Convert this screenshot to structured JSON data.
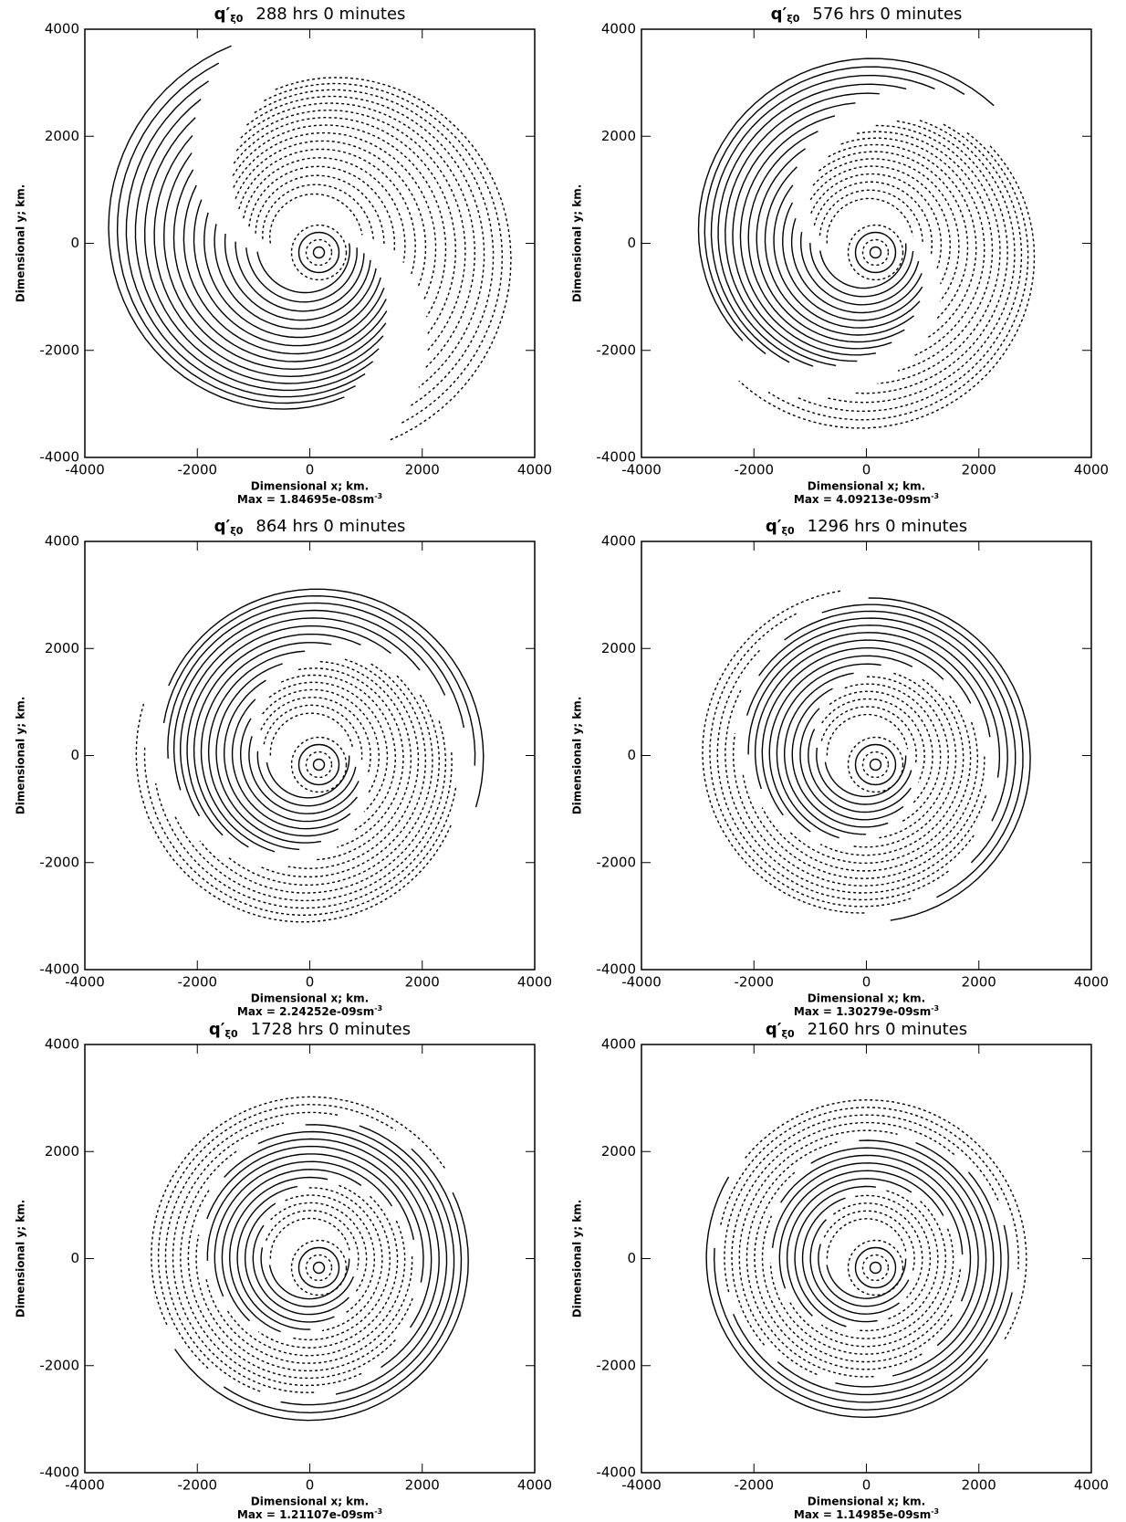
{
  "chart_data": [
    {
      "type": "contour",
      "variable": "q′",
      "variable_subscript": "ξ0",
      "title": "288 hrs 0 minutes",
      "xlabel": "Dimensional x; km.",
      "ylabel": "Dimensional y; km.",
      "annotation": "Max = 1.84695e-08sm",
      "annotation_superscript": "-3",
      "xlim": [
        -4000,
        4000
      ],
      "ylim": [
        -4000,
        4000
      ],
      "xticks": [
        -4000,
        -2000,
        0,
        2000,
        4000
      ],
      "yticks": [
        -4000,
        -2000,
        0,
        2000,
        4000
      ]
    },
    {
      "type": "contour",
      "variable": "q′",
      "variable_subscript": "ξ0",
      "title": "576 hrs 0 minutes",
      "xlabel": "Dimensional x; km.",
      "ylabel": "Dimensional y; km.",
      "annotation": "Max = 4.09213e-09sm",
      "annotation_superscript": "-3",
      "xlim": [
        -4000,
        4000
      ],
      "ylim": [
        -4000,
        4000
      ],
      "xticks": [
        -4000,
        -2000,
        0,
        2000,
        4000
      ],
      "yticks": [
        -4000,
        -2000,
        0,
        2000,
        4000
      ]
    },
    {
      "type": "contour",
      "variable": "q′",
      "variable_subscript": "ξ0",
      "title": "864 hrs 0 minutes",
      "xlabel": "Dimensional x; km.",
      "ylabel": "Dimensional y; km.",
      "annotation": "Max = 2.24252e-09sm",
      "annotation_superscript": "-3",
      "xlim": [
        -4000,
        4000
      ],
      "ylim": [
        -4000,
        4000
      ],
      "xticks": [
        -4000,
        -2000,
        0,
        2000,
        4000
      ],
      "yticks": [
        -4000,
        -2000,
        0,
        2000,
        4000
      ]
    },
    {
      "type": "contour",
      "variable": "q′",
      "variable_subscript": "ξ0",
      "title": "1296 hrs 0 minutes",
      "xlabel": "Dimensional x; km.",
      "ylabel": "Dimensional y; km.",
      "annotation": "Max = 1.30279e-09sm",
      "annotation_superscript": "-3",
      "xlim": [
        -4000,
        4000
      ],
      "ylim": [
        -4000,
        4000
      ],
      "xticks": [
        -4000,
        -2000,
        0,
        2000,
        4000
      ],
      "yticks": [
        -4000,
        -2000,
        0,
        2000,
        4000
      ]
    },
    {
      "type": "contour",
      "variable": "q′",
      "variable_subscript": "ξ0",
      "title": "1728 hrs 0 minutes",
      "xlabel": "Dimensional x; km.",
      "ylabel": "Dimensional y; km.",
      "annotation": "Max = 1.21107e-09sm",
      "annotation_superscript": "-3",
      "xlim": [
        -4000,
        4000
      ],
      "ylim": [
        -4000,
        4000
      ],
      "xticks": [
        -4000,
        -2000,
        0,
        2000,
        4000
      ],
      "yticks": [
        -4000,
        -2000,
        0,
        2000,
        4000
      ]
    },
    {
      "type": "contour",
      "variable": "q′",
      "variable_subscript": "ξ0",
      "title": "2160 hrs 0 minutes",
      "xlabel": "Dimensional x; km.",
      "ylabel": "Dimensional y; km.",
      "annotation": "Max = 1.14985e-09sm",
      "annotation_superscript": "-3",
      "xlim": [
        -4000,
        4000
      ],
      "ylim": [
        -4000,
        4000
      ],
      "xticks": [
        -4000,
        -2000,
        0,
        2000,
        4000
      ],
      "yticks": [
        -4000,
        -2000,
        0,
        2000,
        4000
      ]
    }
  ]
}
